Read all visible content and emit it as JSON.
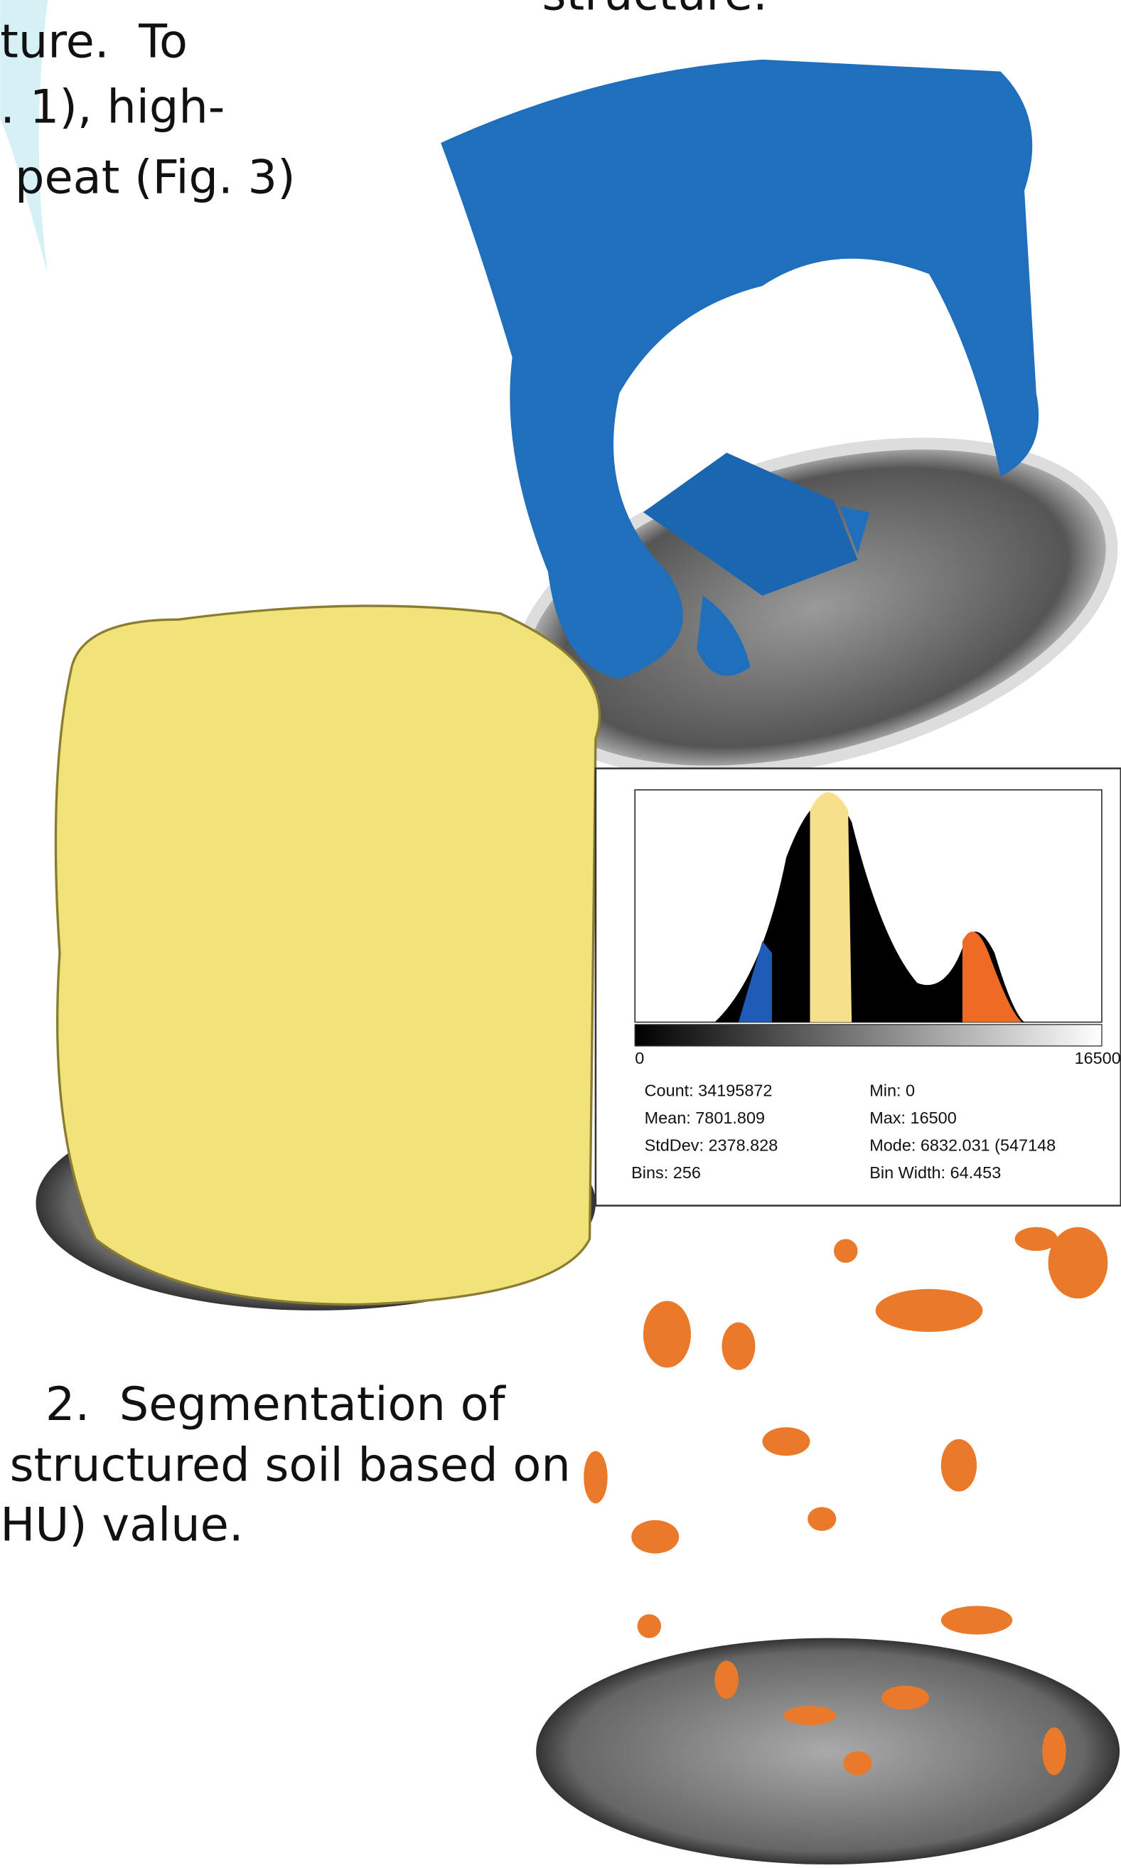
{
  "top_text": {
    "cut_line": "structure.",
    "lines": [
      "ture.  To",
      ". 1), high-",
      " peat (Fig. 3)"
    ]
  },
  "histogram": {
    "axis_min": "0",
    "axis_max": "16500",
    "stats": [
      "Count: 34195872",
      "Min: 0",
      "Mean: 7801.809",
      "Max: 16500",
      "StdDev: 2378.828",
      "Mode: 6832.031 (547148",
      "Bins: 256",
      "Bin Width: 64.453"
    ]
  },
  "caption": {
    "lines": [
      "2.  Segmentation of",
      "structured soil based on",
      "HU) value."
    ]
  }
}
